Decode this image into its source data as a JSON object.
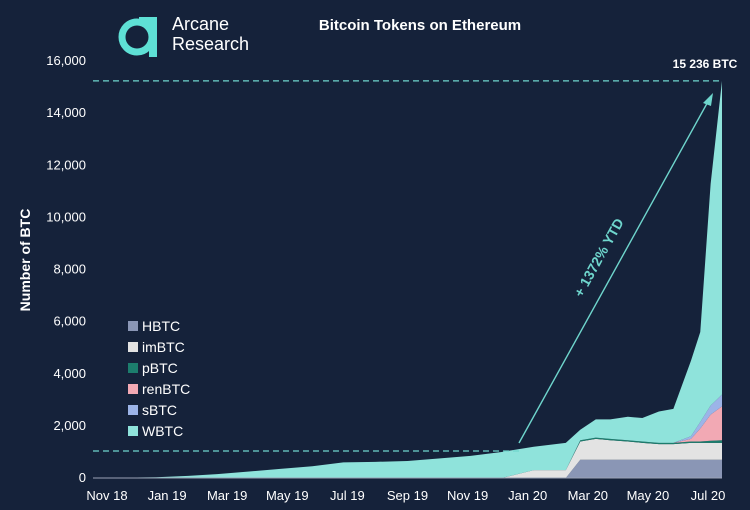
{
  "brand": {
    "line1": "Arcane",
    "line2": "Research",
    "color": "#5ee0d5"
  },
  "chart_data": {
    "type": "area",
    "stacked": true,
    "title": "Bitcoin Tokens on Ethereum",
    "xlabel": "",
    "ylabel": "Number of BTC",
    "ylim": [
      0,
      16000
    ],
    "y_ticks": [
      0,
      2000,
      4000,
      6000,
      8000,
      10000,
      12000,
      14000,
      16000
    ],
    "y_tick_labels": [
      "0",
      "2,000",
      "4,000",
      "6,000",
      "8,000",
      "10,000",
      "12,000",
      "14,000",
      "16,000"
    ],
    "x_tick_labels": [
      "Nov 18",
      "Jan 19",
      "Mar 19",
      "May 19",
      "Jul 19",
      "Sep 19",
      "Nov 19",
      "Jan 20",
      "Mar 20",
      "May 20",
      "Jul 20"
    ],
    "legend_position": "bottom-left",
    "grid": false,
    "x_dates": [
      "2018-11-01",
      "2019-01-01",
      "2019-02-01",
      "2019-03-01",
      "2019-04-01",
      "2019-05-01",
      "2019-06-01",
      "2019-07-01",
      "2019-08-01",
      "2019-09-01",
      "2019-10-01",
      "2019-11-01",
      "2019-12-01",
      "2020-01-01",
      "2020-02-01",
      "2020-02-15",
      "2020-03-01",
      "2020-03-15",
      "2020-04-01",
      "2020-04-15",
      "2020-05-01",
      "2020-05-15",
      "2020-06-01",
      "2020-06-10",
      "2020-06-20",
      "2020-07-01"
    ],
    "series": [
      {
        "name": "HBTC",
        "color": "#8a96b5",
        "values": [
          0,
          0,
          0,
          0,
          0,
          0,
          0,
          0,
          0,
          0,
          0,
          0,
          0,
          0,
          0,
          700,
          700,
          700,
          700,
          700,
          700,
          700,
          700,
          700,
          700,
          700
        ]
      },
      {
        "name": "imBTC",
        "color": "#e3e3e3",
        "values": [
          0,
          0,
          0,
          0,
          0,
          0,
          0,
          0,
          0,
          0,
          0,
          0,
          0,
          300,
          300,
          700,
          800,
          750,
          700,
          650,
          600,
          600,
          650,
          650,
          650,
          650
        ]
      },
      {
        "name": "pBTC",
        "color": "#1c7d6d",
        "values": [
          0,
          0,
          0,
          0,
          0,
          0,
          0,
          0,
          0,
          0,
          0,
          0,
          0,
          0,
          0,
          50,
          50,
          50,
          50,
          50,
          50,
          50,
          50,
          50,
          80,
          100
        ]
      },
      {
        "name": "renBTC",
        "color": "#f2a9b4",
        "values": [
          0,
          0,
          0,
          0,
          0,
          0,
          0,
          0,
          0,
          0,
          0,
          0,
          0,
          0,
          0,
          0,
          0,
          0,
          0,
          0,
          0,
          0,
          100,
          500,
          1000,
          1300
        ]
      },
      {
        "name": "sBTC",
        "color": "#9cb4e8",
        "values": [
          0,
          0,
          0,
          0,
          0,
          0,
          0,
          0,
          0,
          0,
          0,
          0,
          0,
          0,
          0,
          0,
          0,
          0,
          0,
          0,
          0,
          0,
          100,
          250,
          350,
          450
        ]
      },
      {
        "name": "WBTC",
        "color": "#8fe3db",
        "values": [
          0,
          30,
          80,
          150,
          250,
          350,
          450,
          600,
          620,
          650,
          750,
          850,
          1000,
          900,
          1050,
          400,
          700,
          750,
          900,
          900,
          1200,
          1300,
          2900,
          3450,
          8500,
          12036
        ]
      }
    ],
    "final_label": "15 236 BTC",
    "annotation": "+ 1372% YTD",
    "annotation_color": "#6fd6cd",
    "reference_lines": [
      1035,
      15236
    ]
  }
}
